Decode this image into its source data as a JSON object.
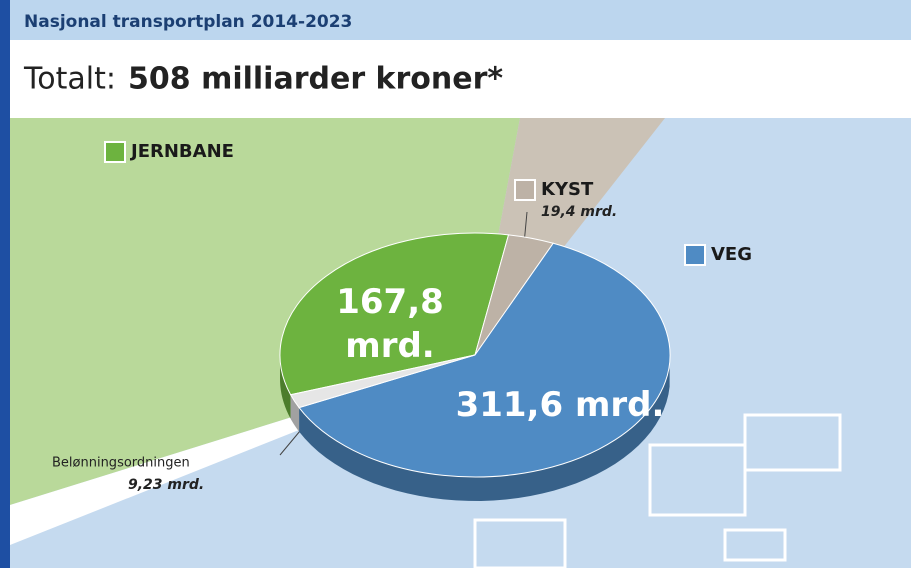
{
  "chart_data": {
    "type": "pie",
    "title": "Nasjonal transportplan 2014-2023",
    "subtitle_lead": "Totalt:",
    "subtitle": "508 milliarder kroner*",
    "categories": [
      "JERNBANE",
      "KYST",
      "VEG",
      "Belønningsordningen"
    ],
    "values": [
      167.8,
      19.4,
      311.6,
      9.23
    ],
    "value_labels": [
      "167,8 mrd.",
      "19,4 mrd.",
      "311,6 mrd.",
      "9,23 mrd."
    ],
    "colors": [
      "#6db33f",
      "#bdb2a6",
      "#4f8bc4",
      "#e6e6e6"
    ]
  }
}
